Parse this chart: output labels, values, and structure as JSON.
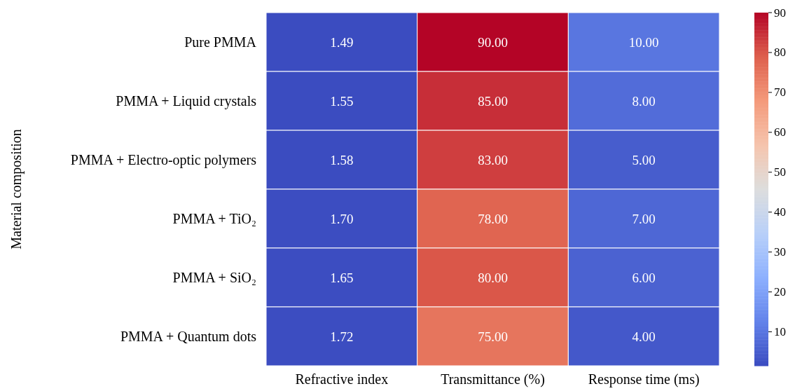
{
  "chart_data": {
    "type": "heatmap",
    "ylabel": "Material composition",
    "categories": [
      "Refractive index",
      "Transmittance (%)",
      "Response time (ms)"
    ],
    "y_categories": [
      "Pure PMMA",
      "PMMA + Liquid crystals",
      "PMMA + Electro-optic polymers",
      "PMMA + TiO₂",
      "PMMA + SiO₂",
      "PMMA + Quantum dots"
    ],
    "cells": [
      [
        1.49,
        90,
        10
      ],
      [
        1.55,
        85,
        8
      ],
      [
        1.58,
        83,
        5
      ],
      [
        1.7,
        78,
        7
      ],
      [
        1.65,
        80,
        6
      ],
      [
        1.72,
        75,
        4
      ]
    ],
    "cell_labels": [
      [
        "1.49",
        "90.00",
        "10.00"
      ],
      [
        "1.55",
        "85.00",
        "8.00"
      ],
      [
        "1.58",
        "83.00",
        "5.00"
      ],
      [
        "1.70",
        "78.00",
        "7.00"
      ],
      [
        "1.65",
        "80.00",
        "6.00"
      ],
      [
        "1.72",
        "75.00",
        "4.00"
      ]
    ],
    "clim": [
      1.49,
      90
    ],
    "cticks": [
      10,
      20,
      30,
      40,
      50,
      60,
      70,
      80,
      90
    ]
  }
}
